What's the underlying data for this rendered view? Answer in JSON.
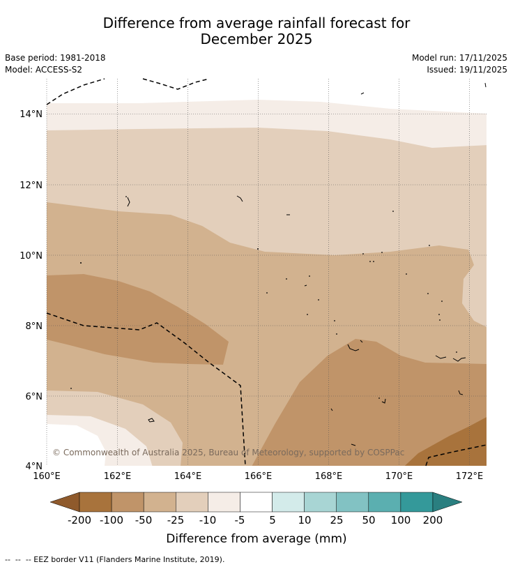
{
  "title_line1": "Difference from average rainfall forecast for",
  "title_line2": "December 2025",
  "base_period": "Base period: 1981-2018",
  "model": "Model: ACCESS-S2",
  "model_run": "Model run: 17/11/2025",
  "issued": "Issued: 19/11/2025",
  "copyright": "© Commonwealth of Australia 2025, Bureau of Meteorology, supported by COSPPac",
  "longitude_labels": [
    "160°E",
    "162°E",
    "164°E",
    "166°E",
    "168°E",
    "170°E",
    "172°E"
  ],
  "latitude_labels": [
    "14°N",
    "12°N",
    "10°N",
    "8°N",
    "6°N",
    "4°N"
  ],
  "colorbar": {
    "title": "Difference from average (mm)",
    "tick_labels": [
      "-200",
      "-100",
      "-50",
      "-25",
      "-10",
      "-5",
      "5",
      "10",
      "25",
      "50",
      "100",
      "200"
    ],
    "colors": [
      "#8f5a2c",
      "#a8733c",
      "#c09469",
      "#d2b28f",
      "#e3cfbb",
      "#f5ede7",
      "#ffffff",
      "#d3ebea",
      "#a8d5d4",
      "#82c2c3",
      "#5bafb0",
      "#34999a",
      "#2a7f80"
    ]
  },
  "footer": "--  --  -- EEZ border V11 (Flanders Marine Institute, 2019)."
}
